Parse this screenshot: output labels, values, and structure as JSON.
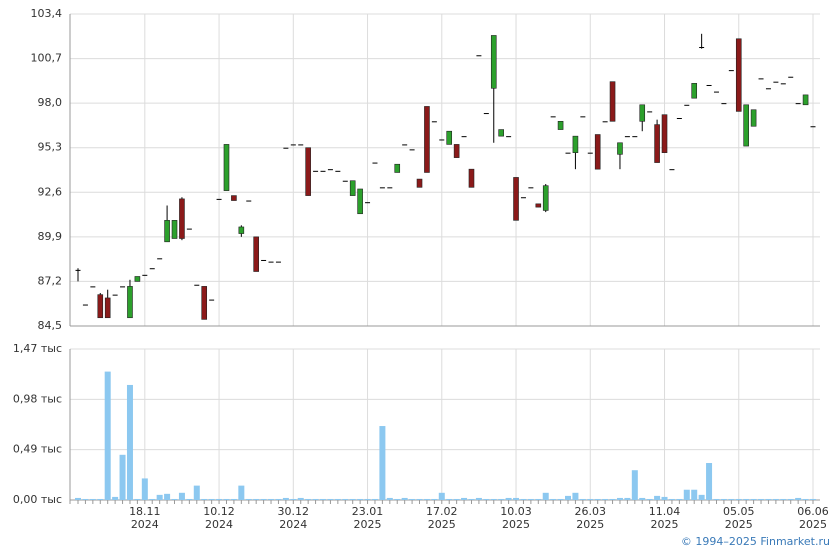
{
  "chart_data": {
    "type": "candlestick",
    "categories": [
      null,
      null,
      null,
      null,
      null,
      null,
      null,
      null,
      null,
      [
        "18.11",
        "2024"
      ],
      null,
      null,
      null,
      null,
      null,
      null,
      null,
      null,
      null,
      [
        "10.12",
        "2024"
      ],
      null,
      null,
      null,
      null,
      null,
      null,
      null,
      null,
      null,
      [
        "30.12",
        "2024"
      ],
      null,
      null,
      null,
      null,
      null,
      null,
      null,
      null,
      null,
      [
        "23.01",
        "2025"
      ],
      null,
      null,
      null,
      null,
      null,
      null,
      null,
      null,
      null,
      [
        "17.02",
        "2025"
      ],
      null,
      null,
      null,
      null,
      null,
      null,
      null,
      null,
      null,
      [
        "10.03",
        "2025"
      ],
      null,
      null,
      null,
      null,
      null,
      null,
      null,
      null,
      null,
      [
        "26.03",
        "2025"
      ],
      null,
      null,
      null,
      null,
      null,
      null,
      null,
      null,
      null,
      [
        "11.04",
        "2025"
      ],
      null,
      null,
      null,
      null,
      null,
      null,
      null,
      null,
      null,
      [
        "05.05",
        "2025"
      ],
      null,
      null,
      null,
      null,
      null,
      null,
      null,
      null,
      null,
      [
        "06.06",
        "2025"
      ]
    ],
    "open": [
      87.9,
      85.8,
      86.9,
      86.4,
      86.2,
      86.4,
      86.9,
      85.0,
      87.2,
      87.6,
      88.0,
      88.6,
      89.6,
      89.8,
      92.2,
      90.4,
      87.0,
      86.9,
      86.1,
      92.2,
      92.7,
      92.4,
      90.1,
      92.1,
      89.9,
      88.5,
      88.4,
      88.4,
      95.3,
      95.5,
      95.5,
      95.3,
      93.9,
      93.9,
      94.0,
      93.9,
      93.3,
      92.4,
      91.3,
      92.0,
      94.4,
      92.9,
      92.9,
      93.8,
      95.5,
      95.2,
      93.4,
      97.8,
      96.9,
      95.8,
      95.5,
      95.5,
      96.0,
      94.0,
      100.9,
      97.4,
      98.9,
      96.0,
      96.0,
      93.5,
      92.3,
      92.9,
      91.9,
      91.5,
      97.2,
      96.4,
      95.0,
      95.0,
      97.2,
      95.0,
      96.1,
      96.9,
      99.3,
      94.9,
      96.0,
      96.0,
      96.9,
      97.5,
      96.7,
      97.3,
      94.0,
      97.1,
      97.9,
      98.3,
      101.4,
      99.1,
      98.7,
      98.0,
      100.0,
      101.9,
      95.4,
      96.6,
      99.5,
      98.9,
      99.3,
      99.2,
      99.6,
      98.0,
      97.9,
      96.6
    ],
    "high": [
      88.0,
      85.8,
      86.9,
      86.5,
      86.7,
      86.4,
      86.9,
      87.3,
      87.5,
      87.6,
      88.0,
      88.6,
      91.8,
      90.9,
      92.3,
      90.4,
      87.0,
      86.9,
      86.1,
      92.2,
      95.5,
      92.4,
      90.6,
      92.1,
      89.9,
      88.5,
      88.4,
      88.4,
      95.3,
      95.5,
      95.5,
      95.3,
      93.9,
      93.9,
      94.0,
      93.9,
      93.3,
      93.3,
      92.8,
      92.0,
      94.4,
      92.9,
      92.9,
      94.3,
      95.5,
      95.2,
      93.4,
      97.8,
      96.9,
      95.8,
      96.3,
      95.5,
      96.0,
      94.0,
      100.9,
      97.4,
      102.1,
      96.4,
      96.0,
      93.5,
      92.3,
      92.9,
      91.9,
      93.1,
      97.2,
      96.9,
      95.0,
      96.0,
      97.2,
      95.0,
      96.1,
      96.9,
      99.3,
      95.6,
      96.0,
      96.0,
      97.9,
      97.5,
      97.0,
      97.3,
      94.0,
      97.1,
      97.9,
      99.2,
      102.2,
      99.1,
      98.7,
      98.0,
      100.0,
      101.9,
      97.9,
      97.6,
      99.5,
      98.9,
      99.3,
      99.2,
      99.6,
      98.0,
      98.5,
      96.6
    ],
    "low": [
      87.2,
      85.8,
      86.9,
      85.0,
      85.0,
      86.4,
      86.9,
      85.0,
      87.2,
      87.6,
      88.0,
      88.6,
      89.6,
      89.8,
      89.7,
      90.4,
      87.0,
      84.9,
      86.1,
      92.2,
      92.7,
      92.1,
      89.9,
      92.1,
      87.8,
      88.5,
      88.4,
      88.4,
      95.3,
      95.5,
      95.5,
      92.4,
      93.9,
      93.9,
      94.0,
      93.9,
      93.3,
      92.4,
      91.3,
      92.0,
      94.4,
      92.9,
      92.9,
      93.8,
      95.5,
      95.2,
      92.9,
      93.8,
      96.9,
      95.8,
      95.5,
      94.7,
      96.0,
      92.9,
      100.9,
      97.4,
      95.6,
      96.0,
      96.0,
      90.9,
      92.3,
      92.9,
      91.7,
      91.4,
      97.2,
      96.4,
      95.0,
      94.0,
      97.2,
      95.0,
      94.0,
      96.9,
      96.9,
      94.0,
      96.0,
      96.0,
      96.3,
      97.5,
      94.4,
      95.0,
      94.0,
      97.1,
      97.9,
      98.3,
      101.3,
      99.1,
      98.7,
      98.0,
      100.0,
      97.5,
      95.4,
      96.6,
      99.5,
      98.9,
      99.3,
      99.2,
      99.6,
      98.0,
      97.9,
      96.6
    ],
    "close": [
      87.9,
      85.8,
      86.9,
      85.0,
      85.0,
      86.4,
      86.9,
      86.9,
      87.5,
      87.6,
      88.0,
      88.6,
      90.9,
      90.9,
      89.8,
      90.4,
      87.0,
      84.9,
      86.1,
      92.2,
      95.5,
      92.1,
      90.5,
      92.1,
      87.8,
      88.5,
      88.4,
      88.4,
      95.3,
      95.5,
      95.5,
      92.4,
      93.9,
      93.9,
      94.0,
      93.9,
      93.3,
      93.3,
      92.8,
      92.0,
      94.4,
      92.9,
      92.9,
      94.3,
      95.5,
      95.2,
      92.9,
      93.8,
      96.9,
      95.8,
      96.3,
      94.7,
      96.0,
      92.9,
      100.9,
      97.4,
      102.1,
      96.4,
      96.0,
      90.9,
      92.3,
      92.9,
      91.7,
      93.0,
      97.2,
      96.9,
      95.0,
      96.0,
      97.2,
      95.0,
      94.0,
      96.9,
      96.9,
      95.6,
      96.0,
      96.0,
      97.9,
      97.5,
      94.4,
      95.0,
      94.0,
      97.1,
      97.9,
      99.2,
      101.4,
      99.1,
      98.7,
      98.0,
      100.0,
      97.5,
      97.9,
      97.6,
      99.5,
      98.9,
      99.3,
      99.2,
      99.6,
      98.0,
      98.5,
      96.6
    ],
    "up_color": "#2ca02c",
    "down_color": "#8b1a1a",
    "ylim": [
      84.5,
      103.4
    ],
    "yticks": [
      {
        "value": 84.5,
        "label": "84,5"
      },
      {
        "value": 87.2,
        "label": "87,2"
      },
      {
        "value": 89.9,
        "label": "89,9"
      },
      {
        "value": 92.6,
        "label": "92,6"
      },
      {
        "value": 95.3,
        "label": "95,3"
      },
      {
        "value": 98.0,
        "label": "98,0"
      },
      {
        "value": 100.7,
        "label": "100,7"
      },
      {
        "value": 103.4,
        "label": "103,4"
      }
    ],
    "volume": {
      "type": "bar",
      "color": "#8cc8f0",
      "values": [
        0.02,
        0.01,
        0.01,
        0.01,
        1.25,
        0.03,
        0.44,
        1.12,
        0.01,
        0.21,
        0.01,
        0.05,
        0.06,
        0.01,
        0.07,
        0.01,
        0.14,
        0.01,
        0.01,
        0.01,
        0.01,
        0.01,
        0.14,
        0.01,
        0.01,
        0.01,
        0.01,
        0.01,
        0.02,
        0.01,
        0.02,
        0.01,
        0.01,
        0.01,
        0.01,
        0.01,
        0.01,
        0.01,
        0.01,
        0.01,
        0.01,
        0.72,
        0.02,
        0.01,
        0.02,
        0.01,
        0.01,
        0.01,
        0.01,
        0.07,
        0.01,
        0.01,
        0.02,
        0.01,
        0.02,
        0.01,
        0.01,
        0.01,
        0.02,
        0.02,
        0.01,
        0.01,
        0.01,
        0.07,
        0.01,
        0.01,
        0.04,
        0.07,
        0.01,
        0.01,
        0.01,
        0.01,
        0.01,
        0.02,
        0.02,
        0.29,
        0.02,
        0.01,
        0.04,
        0.03,
        0.01,
        0.01,
        0.1,
        0.1,
        0.05,
        0.36,
        0.01,
        0.01,
        0.01,
        0.01,
        0.01,
        0.01,
        0.01,
        0.01,
        0.01,
        0.01,
        0.01,
        0.02,
        0.01,
        0.01
      ],
      "ylim": [
        0,
        1.47
      ],
      "yticks": [
        {
          "value": 0,
          "label": "0,00 тыс"
        },
        {
          "value": 0.49,
          "label": "0,49 тыс"
        },
        {
          "value": 0.98,
          "label": "0,98 тыс"
        },
        {
          "value": 1.47,
          "label": "1,47 тыс"
        }
      ]
    },
    "grid": true
  },
  "footer": "© 1994–2025 Finmarket.ru"
}
